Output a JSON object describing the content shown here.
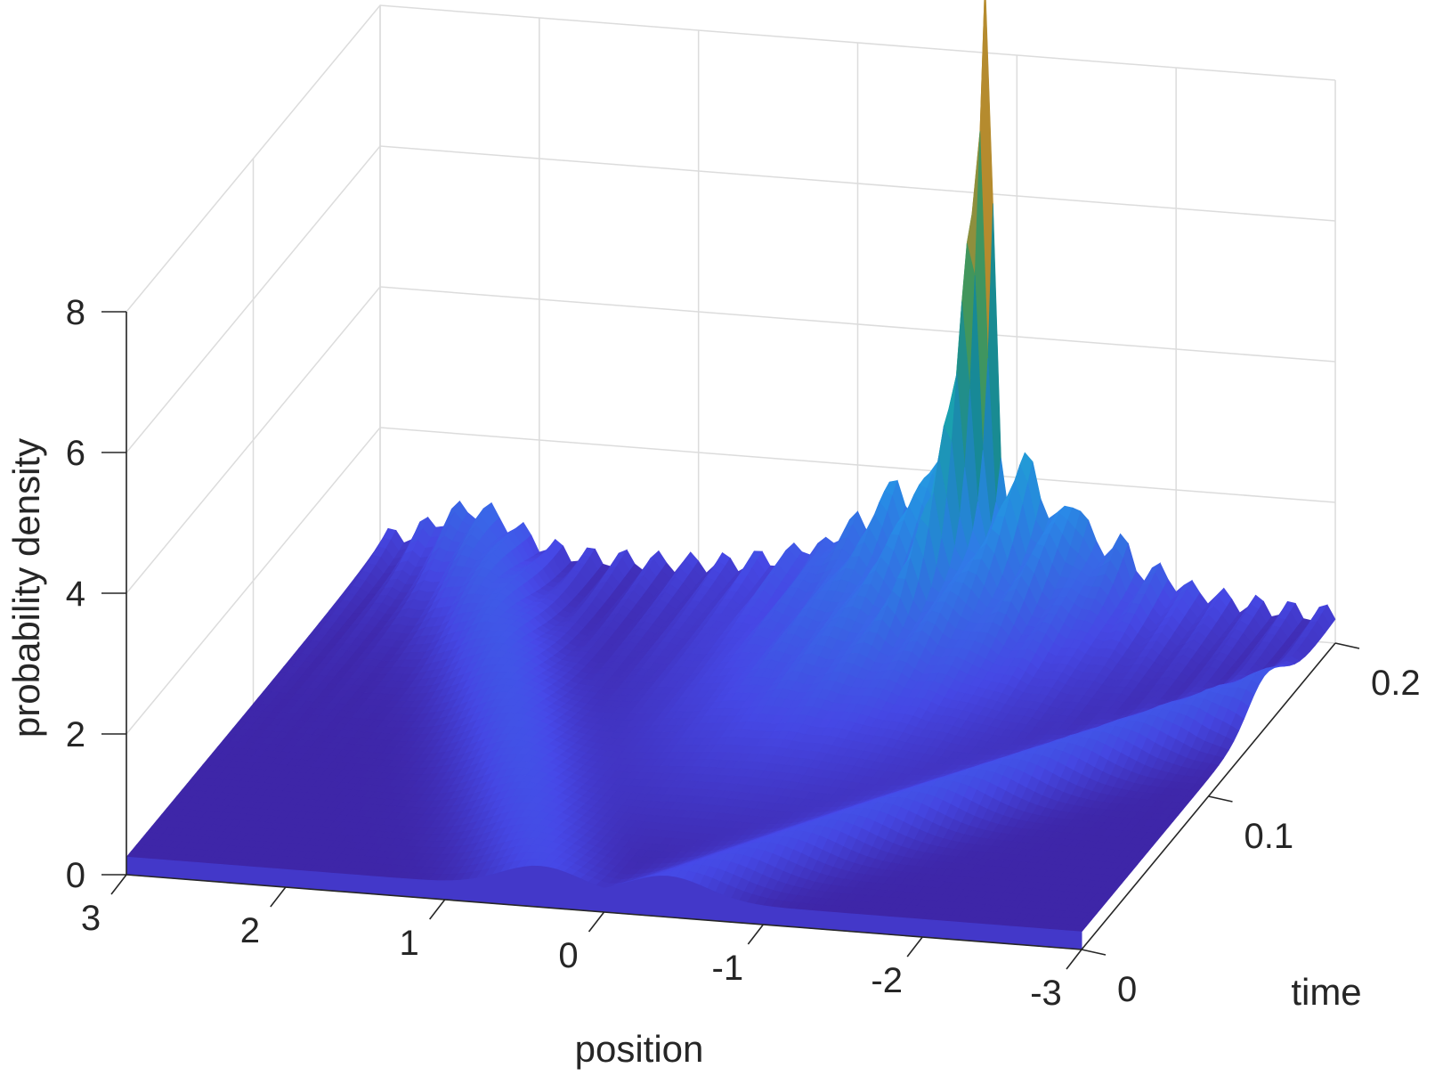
{
  "chart_data": {
    "type": "surface",
    "title": "",
    "xlabel": "position",
    "ylabel": "time",
    "zlabel": "probability density",
    "x_ticks": [
      "3",
      "2",
      "1",
      "0",
      "-1",
      "-2",
      "-3"
    ],
    "x_tick_values": [
      3,
      2,
      1,
      0,
      -1,
      -2,
      -3
    ],
    "y_ticks": [
      "0",
      "0.1",
      "0.2"
    ],
    "y_tick_values": [
      0,
      0.1,
      0.2
    ],
    "z_ticks": [
      "0",
      "2",
      "4",
      "6",
      "8"
    ],
    "z_tick_values": [
      0,
      2,
      4,
      6,
      8
    ],
    "xlim": [
      -3,
      3
    ],
    "ylim": [
      0,
      0.2
    ],
    "zlim": [
      0,
      8
    ],
    "grid": true,
    "colormap": "parula",
    "colors": {
      "low": "#3e26a8",
      "mid_low": "#4a6cf5",
      "mid": "#2ab2e6",
      "mid_high": "#3fc99a",
      "high": "#f9b73e",
      "peak": "#f9fb0e"
    },
    "baseline_density": 0.25,
    "edge_density_at_t_max": 0.5,
    "features": [
      {
        "name": "central peak",
        "position": -0.8,
        "time": 0.2,
        "density": 8.5
      }
    ]
  }
}
